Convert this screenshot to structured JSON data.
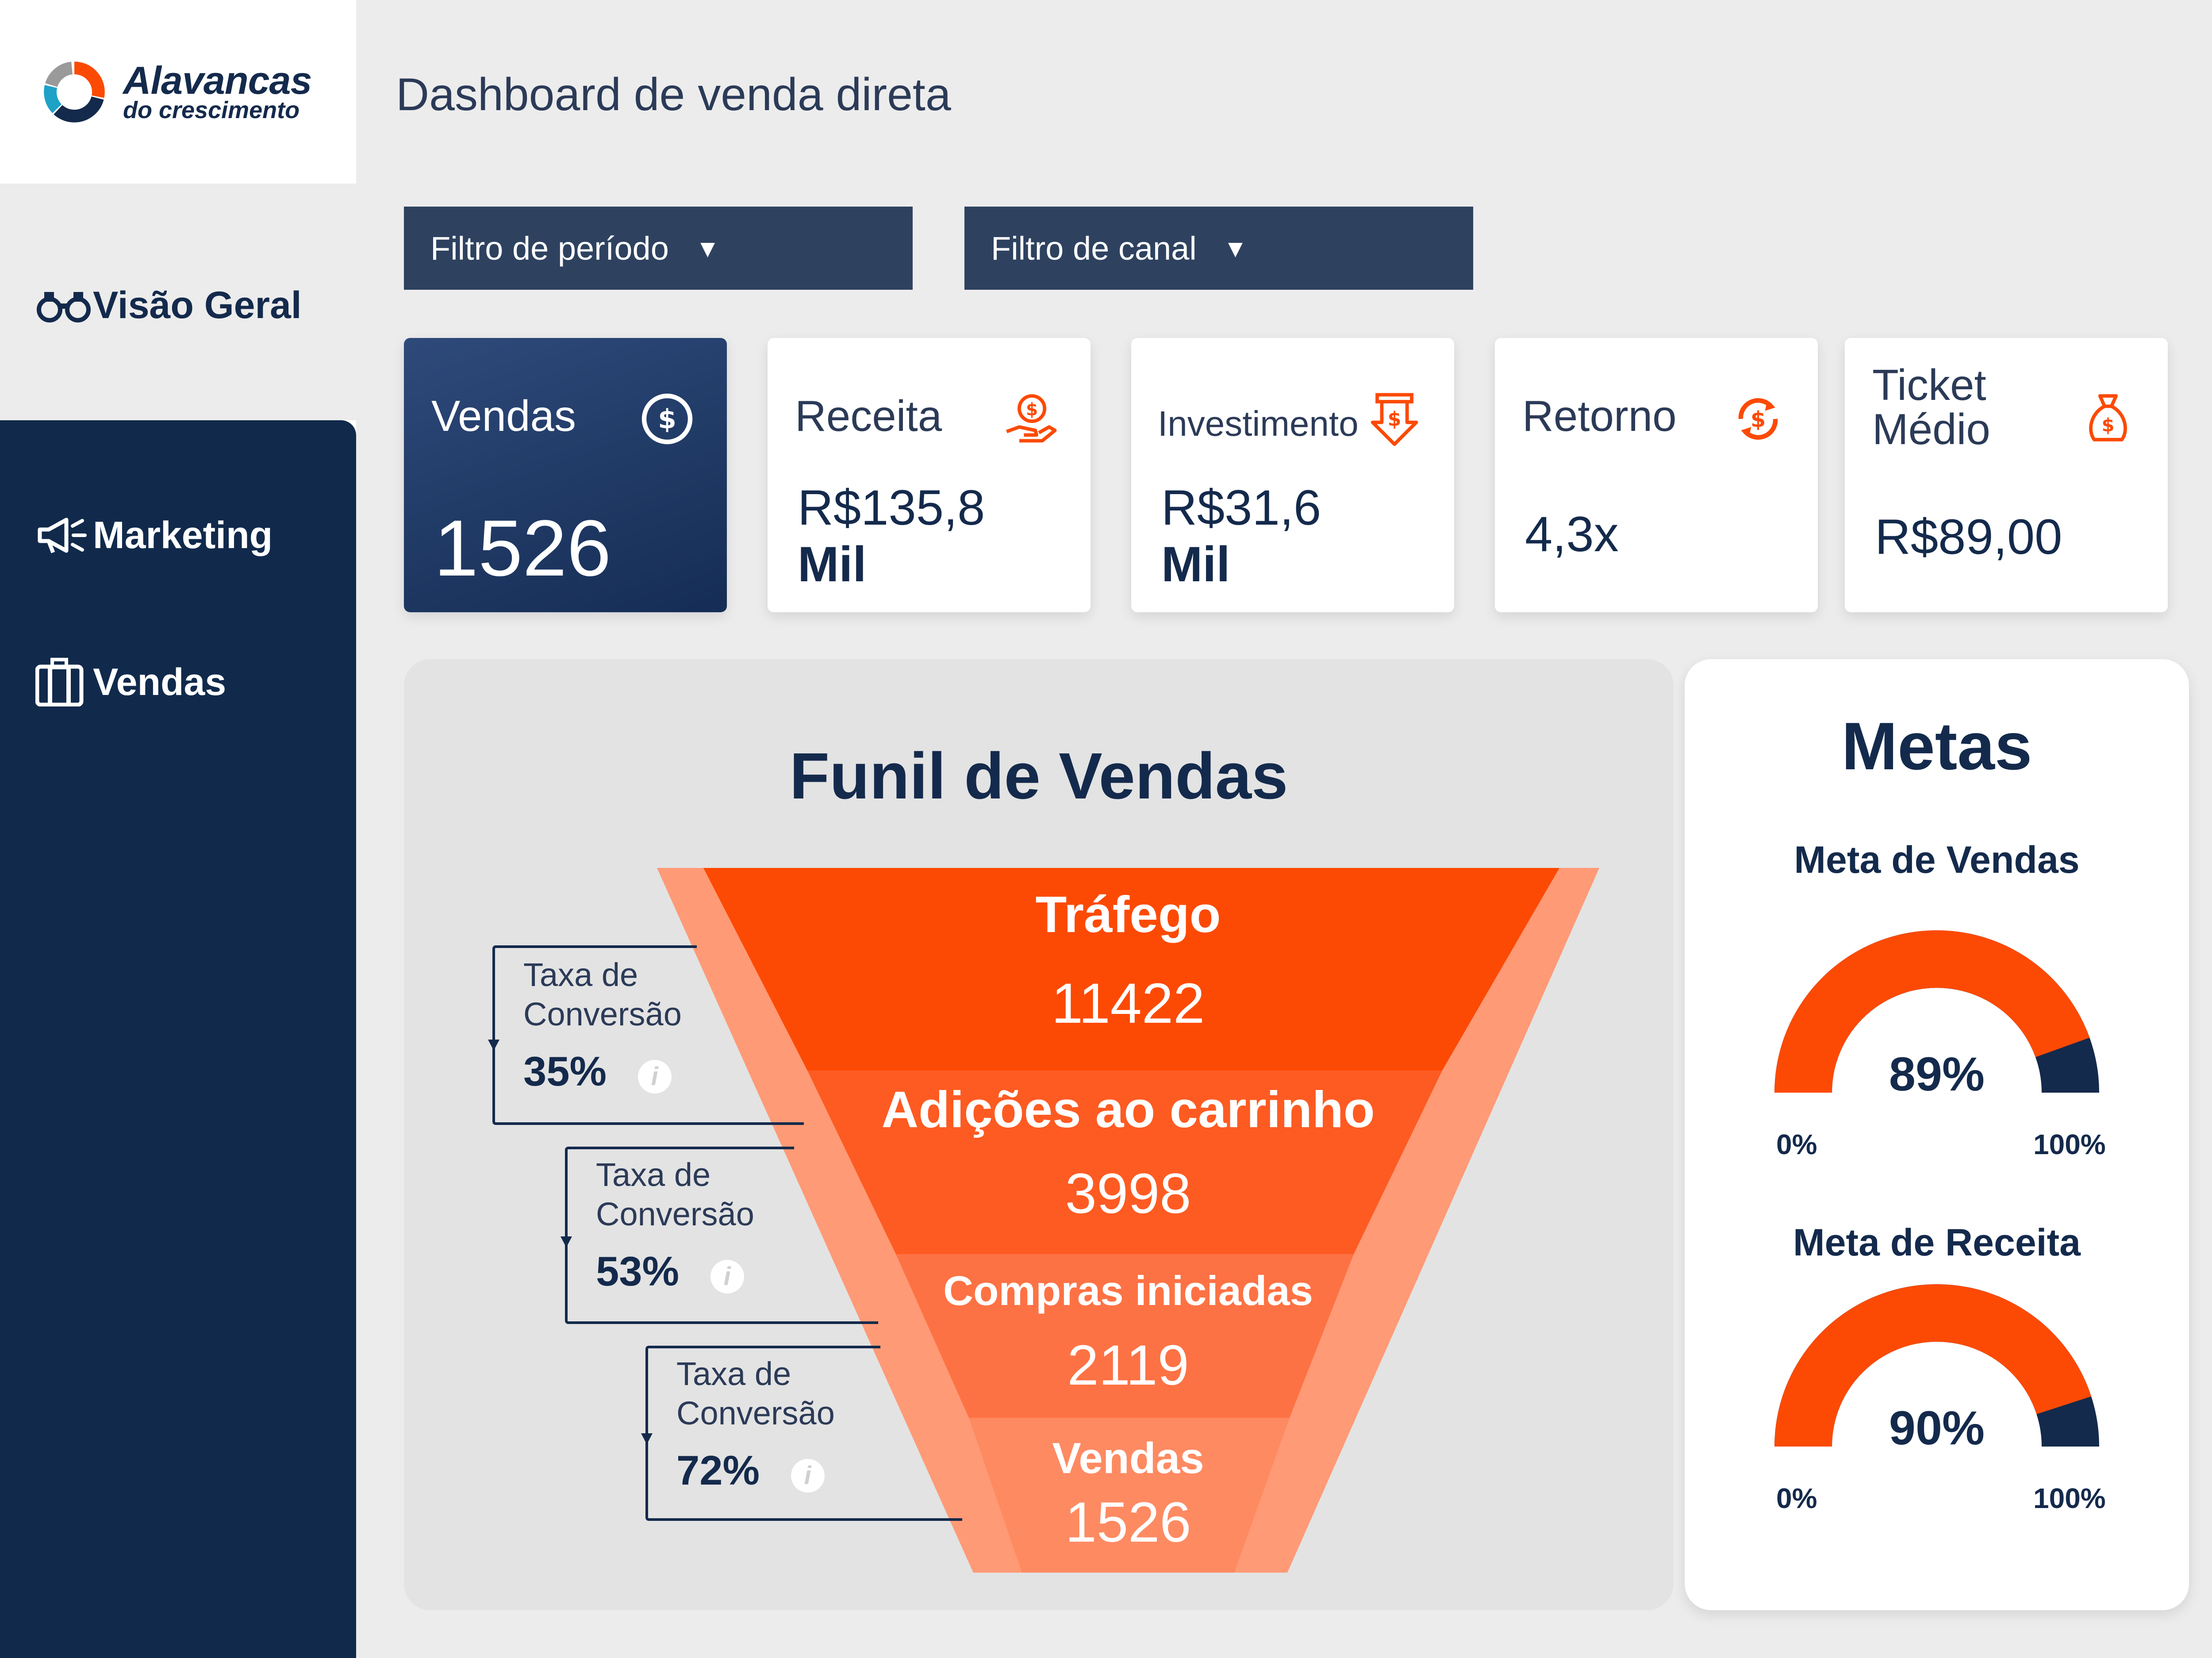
{
  "logo": {
    "title": "Alavancas",
    "subtitle": "do crescimento"
  },
  "sidebar": {
    "items": [
      {
        "label": "Visão Geral",
        "icon": "binoculars-icon"
      },
      {
        "label": "Marketing",
        "icon": "megaphone-icon"
      },
      {
        "label": "Vendas",
        "icon": "briefcase-icon"
      }
    ]
  },
  "header": {
    "title": "Dashboard de venda direta"
  },
  "filters": [
    {
      "label": "Filtro de período",
      "arrow": "▼"
    },
    {
      "label": "Filtro de canal",
      "arrow": "▼"
    }
  ],
  "kpis": [
    {
      "label": "Vendas",
      "value": "1526",
      "icon": "dollar-coin-icon"
    },
    {
      "label": "Receita",
      "value_line1": "R$135,8",
      "value_line2": "Mil",
      "icon": "hand-dollar-icon"
    },
    {
      "label": "Investimento",
      "value_line1": "R$31,6",
      "value_line2": "Mil",
      "icon": "invoice-down-icon"
    },
    {
      "label": "Retorno",
      "value": "4,3x",
      "icon": "refresh-dollar-icon"
    },
    {
      "label_line1": "Ticket",
      "label_line2": "Médio",
      "value": "R$89,00",
      "icon": "money-bag-icon"
    }
  ],
  "funnel": {
    "title": "Funil de Vendas",
    "stages": [
      {
        "label": "Tráfego",
        "value": "11422"
      },
      {
        "label": "Adições ao carrinho",
        "value": "3998"
      },
      {
        "label": "Compras iniciadas",
        "value": "2119"
      },
      {
        "label": "Vendas",
        "value": "1526"
      }
    ],
    "conversions": [
      {
        "line1": "Taxa de",
        "line2": "Conversão",
        "pct": "35%"
      },
      {
        "line1": "Taxa de",
        "line2": "Conversão",
        "pct": "53%"
      },
      {
        "line1": "Taxa de",
        "line2": "Conversão",
        "pct": "72%"
      }
    ],
    "info_glyph": "i"
  },
  "metas": {
    "title": "Metas",
    "gauges": [
      {
        "label": "Meta de Vendas",
        "value_text": "89%",
        "fraction": 0.89,
        "min": "0%",
        "max": "100%"
      },
      {
        "label": "Meta de Receita",
        "value_text": "90%",
        "fraction": 0.9,
        "min": "0%",
        "max": "100%"
      }
    ]
  },
  "colors": {
    "navy": "#142a4c",
    "sidebar_dark": "#112a4c",
    "accent_orange": "#fc4a04",
    "filter_bg": "#2e4260"
  }
}
